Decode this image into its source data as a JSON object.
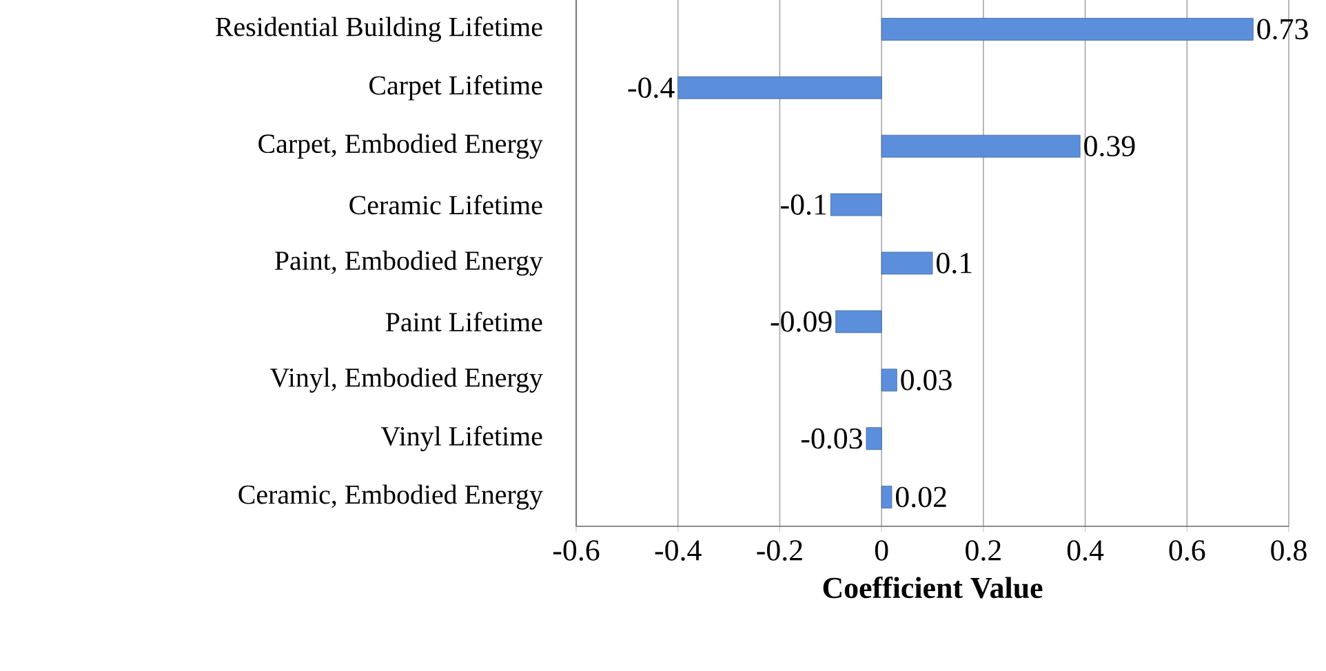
{
  "chart_data": {
    "type": "bar",
    "orientation": "horizontal",
    "xlabel": "Coefficient Value",
    "categories": [
      "Residential Building Lifetime",
      "Carpet Lifetime",
      "Carpet, Embodied Energy",
      "Ceramic Lifetime",
      "Paint, Embodied Energy",
      "Paint Lifetime",
      "Vinyl, Embodied Energy",
      "Vinyl Lifetime",
      "Ceramic, Embodied Energy"
    ],
    "values": [
      0.73,
      -0.4,
      0.39,
      -0.1,
      0.1,
      -0.09,
      0.03,
      -0.03,
      0.02
    ],
    "color": "#5b8fdc",
    "xlim": [
      -0.6,
      0.8
    ],
    "xticks": [
      -0.6,
      -0.4,
      -0.2,
      0,
      0.2,
      0.4,
      0.6,
      0.8
    ],
    "grid": "x",
    "data_labels": true
  }
}
